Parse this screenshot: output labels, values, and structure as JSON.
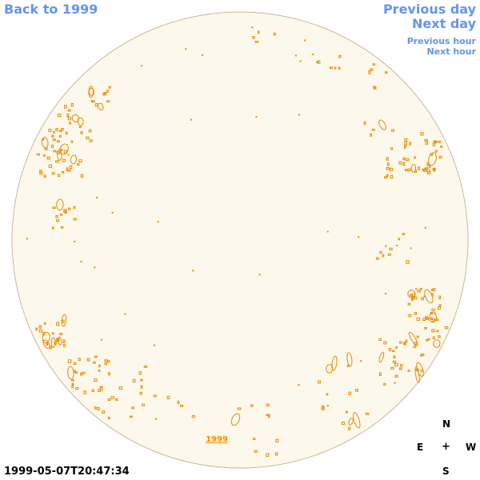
{
  "nav": {
    "back_label": "Back to 1999",
    "prev_day_label": "Previous day",
    "next_day_label": "Next day",
    "prev_hour_label": "Previous hour",
    "next_hour_label": "Next hour"
  },
  "timestamp": "1999-05-07T20:47:34",
  "year_link": "1999",
  "compass": {
    "north": "N",
    "east": "E",
    "center": "+",
    "west": "W",
    "south": "S"
  },
  "colors": {
    "disk_fill": "#fdf8ec",
    "disk_stroke": "#c8b89a",
    "feature": "#e88a00",
    "link": "#6495ed"
  },
  "icons": {
    "center_marker": "center-cross-icon"
  }
}
